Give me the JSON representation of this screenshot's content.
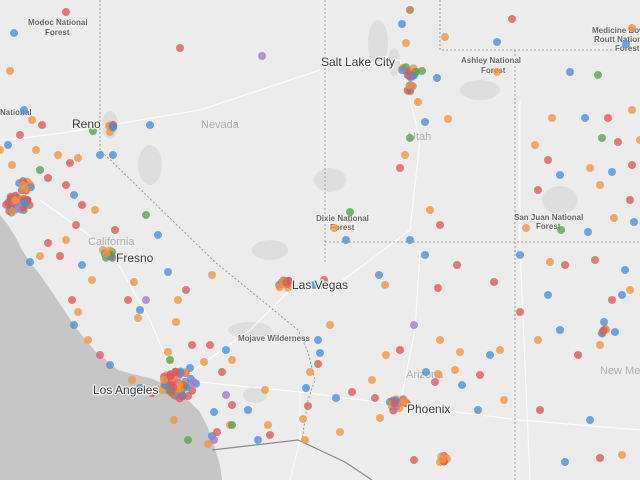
{
  "colors": {
    "land": "#ececec",
    "ocean": "#c6c6c6",
    "parks": "#dedede",
    "blue": "#4a90d9",
    "orange": "#f5953a",
    "red": "#e15759",
    "green": "#59a14f",
    "purple": "#a07cc5",
    "brown": "#b07a3a",
    "teal": "#2f7f86"
  },
  "labels": {
    "cities": [
      {
        "id": "reno",
        "text": "Reno"
      },
      {
        "id": "salt-lake-city",
        "text": "Salt Lake City"
      },
      {
        "id": "fresno",
        "text": "Fresno"
      },
      {
        "id": "las-vegas",
        "text": "Las Vegas"
      },
      {
        "id": "los-angeles",
        "text": "Los Angeles"
      },
      {
        "id": "phoenix",
        "text": "Phoenix"
      }
    ],
    "states": [
      {
        "id": "nevada",
        "text": "Nevada"
      },
      {
        "id": "utah",
        "text": "Utah"
      },
      {
        "id": "california",
        "text": "California"
      },
      {
        "id": "arizona",
        "text": "Arizona"
      },
      {
        "id": "new-mexico",
        "text": "New Me"
      }
    ],
    "regions": [
      {
        "id": "modoc",
        "lines": [
          "Modoc National",
          "Forest"
        ]
      },
      {
        "id": "ashley",
        "lines": [
          "Ashley National",
          "Forest"
        ]
      },
      {
        "id": "medicine-bow",
        "lines": [
          "Medicine Bow",
          "Routt National",
          "Forest"
        ]
      },
      {
        "id": "dixie",
        "lines": [
          "Dixie National",
          "Forest"
        ]
      },
      {
        "id": "san-juan",
        "lines": [
          "San Juan National",
          "Forest"
        ]
      },
      {
        "id": "mojave",
        "lines": [
          "Mojave Wilderness"
        ]
      },
      {
        "id": "national-fragment",
        "lines": [
          "National"
        ]
      }
    ]
  }
}
